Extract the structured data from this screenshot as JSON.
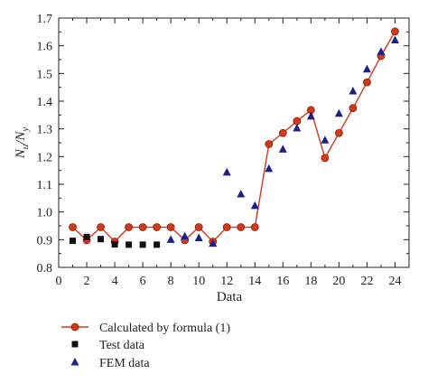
{
  "chart_data": {
    "type": "scatter",
    "xlabel": "Data",
    "ylabel": "N_u/N_y",
    "ylabel_main": "N",
    "ylabel_sub1": "u",
    "ylabel_slash": "/N",
    "ylabel_sub2": "y",
    "xlim": [
      0,
      25
    ],
    "ylim": [
      0.8,
      1.7
    ],
    "x_ticks": [
      "0",
      "2",
      "4",
      "6",
      "8",
      "10",
      "12",
      "14",
      "16",
      "18",
      "20",
      "22",
      "24"
    ],
    "y_ticks": [
      "0.8",
      "0.9",
      "1.0",
      "1.1",
      "1.2",
      "1.3",
      "1.4",
      "1.5",
      "1.6",
      "1.7"
    ],
    "grid": false,
    "legend_position": "below",
    "series": [
      {
        "name": "Calculated by formula (1)",
        "marker": "circle-line",
        "color": "#d03a1c",
        "x": [
          1,
          2,
          3,
          4,
          5,
          6,
          7,
          8,
          9,
          10,
          11,
          12,
          13,
          14,
          15,
          16,
          17,
          18,
          19,
          20,
          21,
          22,
          23,
          24
        ],
        "y": [
          0.945,
          0.898,
          0.945,
          0.893,
          0.945,
          0.945,
          0.945,
          0.945,
          0.898,
          0.945,
          0.893,
          0.945,
          0.945,
          0.945,
          1.245,
          1.285,
          1.328,
          1.368,
          1.195,
          1.285,
          1.375,
          1.468,
          1.563,
          1.652
        ]
      },
      {
        "name": "Test data",
        "marker": "square",
        "color": "#111111",
        "x": [
          1,
          2,
          3,
          4,
          5,
          6,
          7
        ],
        "y": [
          0.896,
          0.91,
          0.902,
          0.883,
          0.882,
          0.882,
          0.882
        ]
      },
      {
        "name": "FEM data",
        "marker": "triangle",
        "color": "#1f1f8a",
        "x": [
          8,
          9,
          10,
          11,
          12,
          13,
          14,
          15,
          16,
          17,
          18,
          19,
          20,
          21,
          22,
          23,
          24
        ],
        "y": [
          0.9,
          0.912,
          0.906,
          0.886,
          1.143,
          1.064,
          1.022,
          1.156,
          1.226,
          1.302,
          1.345,
          1.259,
          1.355,
          1.436,
          1.515,
          1.578,
          1.62
        ]
      }
    ]
  }
}
